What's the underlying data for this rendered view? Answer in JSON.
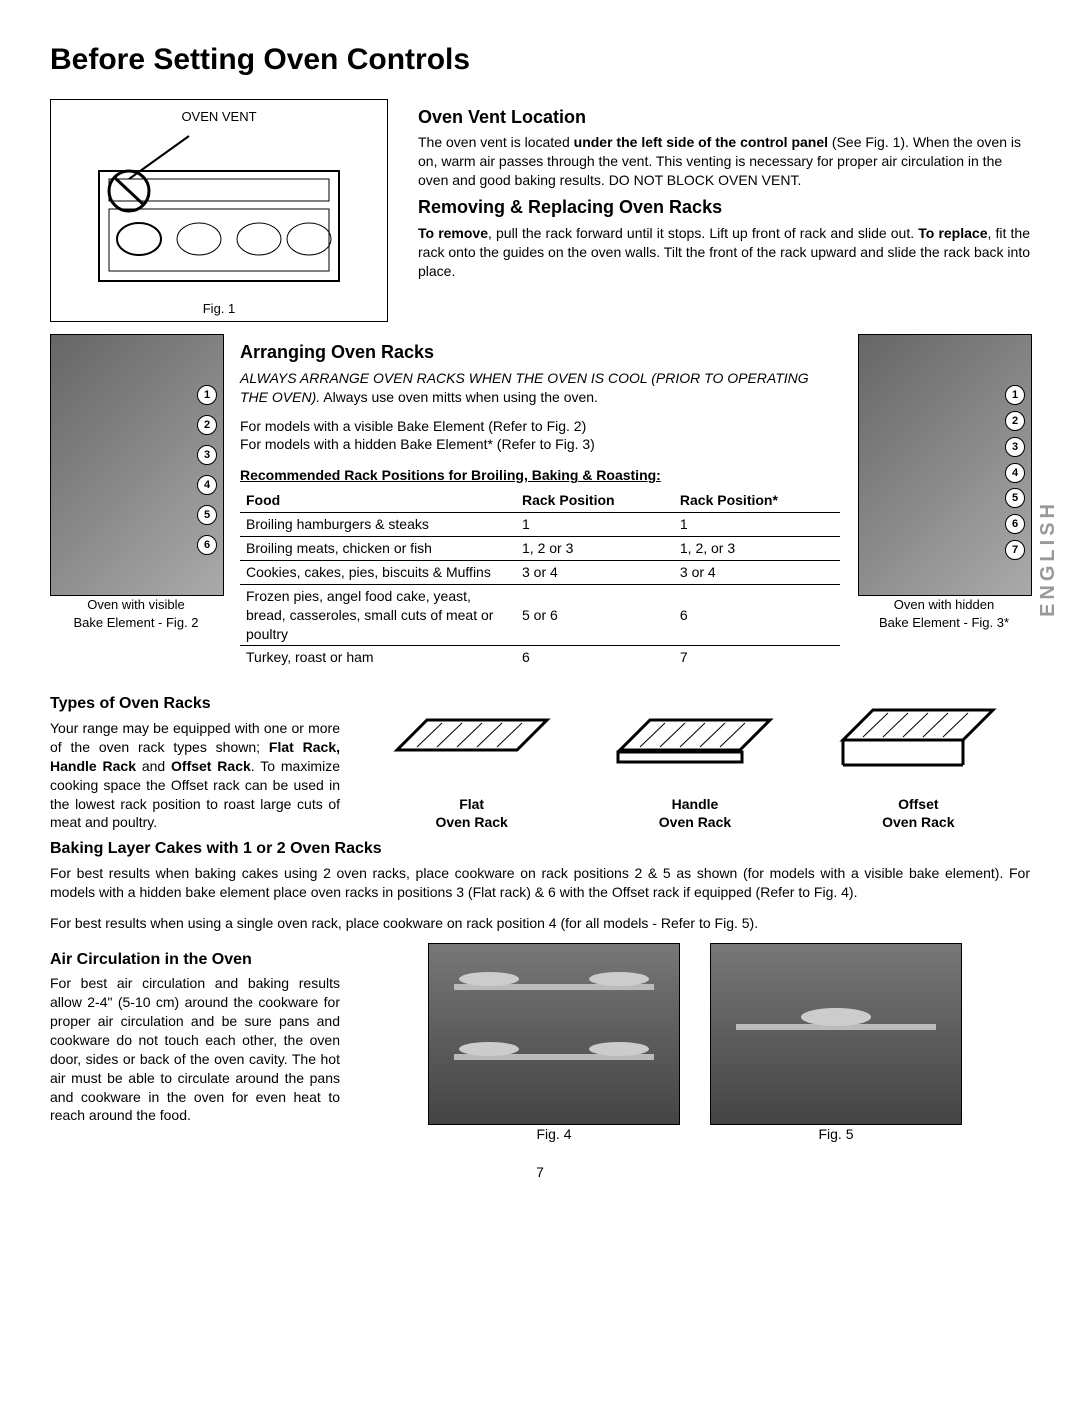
{
  "page": {
    "title": "Before Setting Oven Controls",
    "number": "7",
    "side_tab": "ENGLISH"
  },
  "fig1": {
    "label": "OVEN VENT",
    "caption": "Fig. 1"
  },
  "vent": {
    "heading": "Oven Vent Location",
    "line_a": "The oven vent is located ",
    "line_a_bold": "under the left side of the control panel",
    "line_b": "(See Fig. 1). When the oven is on, warm air passes through the vent. This venting is necessary for proper air circulation in the oven and good baking results. DO NOT BLOCK OVEN VENT."
  },
  "remove": {
    "heading": "Removing & Replacing Oven Racks",
    "bold1": "To remove",
    "text1": ", pull the rack forward until it stops. Lift up front of rack and slide out. ",
    "bold2": "To replace",
    "text2": ", fit the rack onto the guides on the oven walls. Tilt the front of the rack upward and slide the rack back into place."
  },
  "arrange": {
    "heading": "Arranging Oven Racks",
    "italic": "ALWAYS ARRANGE OVEN RACKS WHEN THE OVEN IS COOL (PRIOR TO OPERATING THE OVEN).",
    "tail": " Always use oven mitts when using the oven.",
    "note1": "For models with a visible Bake Element (Refer to Fig. 2)",
    "note2": "For models with a hidden Bake Element* (Refer to Fig. 3)",
    "tbl_title": "Recommended Rack Positions for Broiling, Baking & Roasting:",
    "cols": [
      "Food",
      "Rack Position",
      "Rack Position*"
    ],
    "rows": [
      [
        "Broiling hamburgers & steaks",
        "1",
        "1"
      ],
      [
        "Broiling meats, chicken or fish",
        "1, 2 or 3",
        "1, 2, or 3"
      ],
      [
        "Cookies, cakes, pies, biscuits & Muffins",
        "3 or 4",
        "3 or 4"
      ],
      [
        "Frozen pies, angel food cake, yeast, bread, casseroles, small cuts of meat or poultry",
        "5 or 6",
        "6"
      ],
      [
        "Turkey, roast or ham",
        "6",
        "7"
      ]
    ]
  },
  "fig2": {
    "caption1": "Oven with visible",
    "caption2": "Bake Element - Fig. 2",
    "positions": [
      "1",
      "2",
      "3",
      "4",
      "5",
      "6"
    ]
  },
  "fig3": {
    "caption1": "Oven with hidden",
    "caption2": "Bake Element - Fig. 3*",
    "positions": [
      "1",
      "2",
      "3",
      "4",
      "5",
      "6",
      "7"
    ]
  },
  "types": {
    "heading": "Types of Oven Racks",
    "pre": "Your range may be equipped with one or more of the oven rack types shown; ",
    "bold1": "Flat Rack, Handle Rack",
    "mid": " and ",
    "bold2": "Offset Rack",
    "post": ". To maximize cooking space the Offset rack can be used in the lowest rack position to roast large cuts of meat and poultry.",
    "rack_labels": [
      [
        "Flat",
        "Oven Rack"
      ],
      [
        "Handle",
        "Oven Rack"
      ],
      [
        "Offset",
        "Oven Rack"
      ]
    ]
  },
  "baking": {
    "heading": "Baking Layer Cakes with 1 or 2 Oven Racks",
    "p1": "For best results when baking cakes using 2 oven racks, place cookware on rack positions 2 & 5 as shown (for models with a visible bake element). For models with a hidden bake element place oven racks in positions 3 (Flat rack) & 6 with the Offset rack if equipped (Refer to Fig. 4).",
    "p2": "For best results when using a single oven rack, place cookware on rack position 4 (for all models - Refer to Fig. 5)."
  },
  "air": {
    "heading": "Air Circulation in the Oven",
    "text": "For best air circulation and baking results allow 2-4\" (5-10 cm) around the cookware for proper air circulation and be sure pans and cookware do not touch each other, the oven door, sides or back of the oven cavity. The hot air must be able to circulate around the pans and cookware in the oven for even heat to reach around the food.",
    "fig4": "Fig. 4",
    "fig5": "Fig. 5"
  }
}
